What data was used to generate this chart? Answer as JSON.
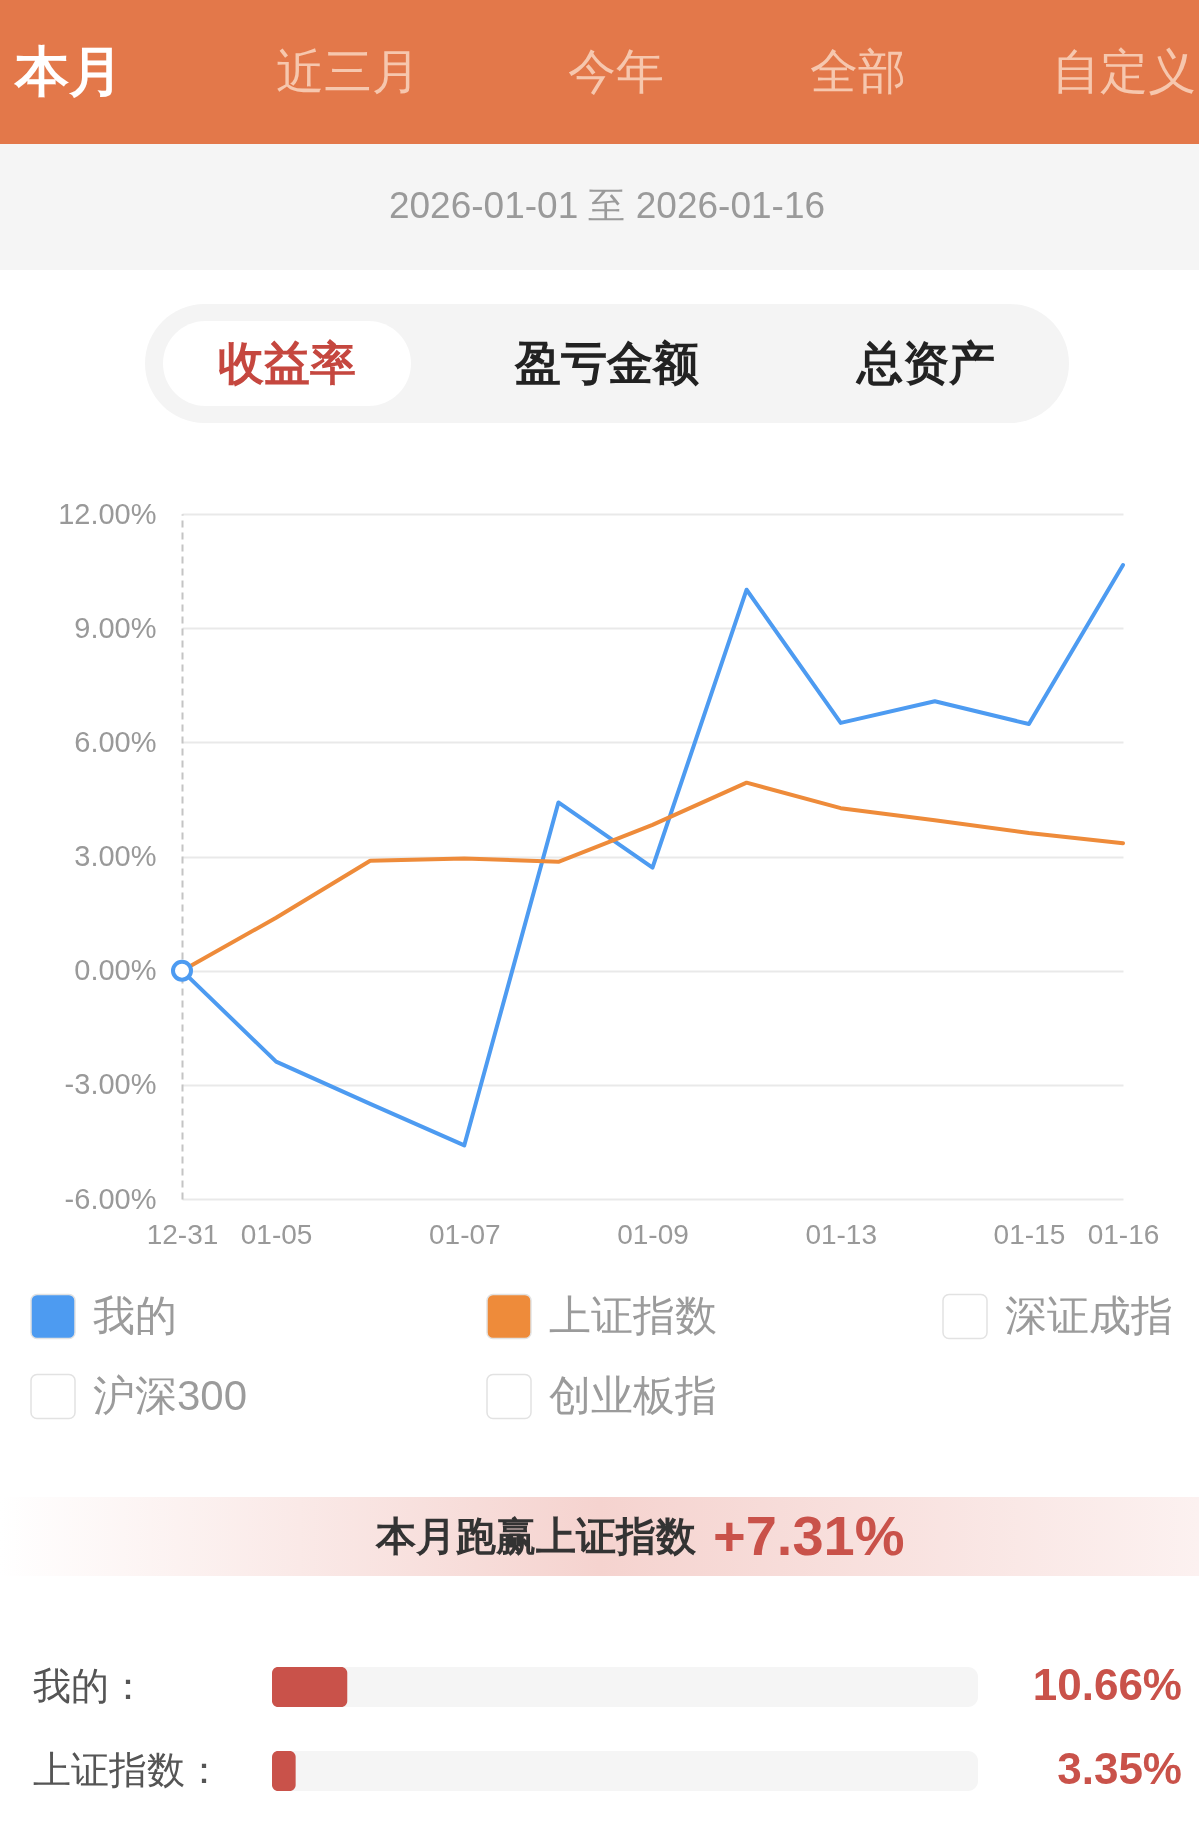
{
  "chart_data": [
    {
      "type": "other",
      "annotations": [
        "本月",
        "近三月",
        "今年",
        "全部",
        "自定义",
        "2026-01-01 至 2026-01-16",
        "收益率",
        "盈亏金额",
        "总资产"
      ]
    },
    {
      "type": "line",
      "categories": [
        "12-31",
        "01-05",
        null,
        "01-07",
        null,
        "01-09",
        null,
        "01-13",
        null,
        "01-15",
        "01-16"
      ],
      "series": [
        {
          "name": "我的",
          "color": "#4d9bf1",
          "values": [
            0,
            -2.39,
            -3.5,
            -4.59,
            4.42,
            2.71,
            10.01,
            6.51,
            7.08,
            6.48,
            10.66
          ]
        },
        {
          "name": "上证指数",
          "color": "#ee8b3a",
          "values": [
            0,
            1.39,
            2.89,
            2.95,
            2.86,
            3.83,
            4.94,
            4.27,
            3.95,
            3.62,
            3.35
          ]
        },
        {
          "name": "深证成指",
          "color": "#ffffff",
          "values": [
            null,
            null,
            null,
            null,
            null,
            null,
            null,
            null,
            null,
            null,
            null
          ]
        },
        {
          "name": "沪深300",
          "color": "#ffffff",
          "values": [
            null,
            null,
            null,
            null,
            null,
            null,
            null,
            null,
            null,
            null,
            null
          ]
        },
        {
          "name": "创业板指",
          "color": "#ffffff",
          "values": [
            null,
            null,
            null,
            null,
            null,
            null,
            null,
            null,
            null,
            null,
            null
          ]
        },
        {
          "type": "scatter",
          "marker": "circle",
          "color": "#4d9bf1",
          "values": [
            0,
            null,
            null,
            null,
            null,
            null,
            null,
            null,
            null,
            null,
            null
          ]
        }
      ],
      "ylim": [
        -6,
        12
      ],
      "yticks": [
        {
          "value": -6,
          "label": "-6.00%"
        },
        {
          "value": -3,
          "label": "-3.00%"
        },
        {
          "value": 0,
          "label": "0.00%"
        },
        {
          "value": 3,
          "label": "3.00%"
        },
        {
          "value": 6,
          "label": "6.00%"
        },
        {
          "value": 9,
          "label": "9.00%"
        },
        {
          "value": 12,
          "label": "12.00%"
        }
      ],
      "grid": "y",
      "legend": "bottom",
      "line_style": "solid"
    },
    {
      "type": "bar",
      "orientation": "horizontal",
      "title": "本月跑赢上证指数",
      "annotations": [
        "+7.31%",
        "：",
        "："
      ],
      "categories": [
        "我的",
        "上证指数"
      ],
      "values": [
        10.66,
        3.35
      ],
      "color": "#c9524a",
      "value_labels": [
        "10.66%",
        "3.35%"
      ],
      "xlim": [
        0,
        100
      ],
      "tick_labels": "y"
    }
  ]
}
